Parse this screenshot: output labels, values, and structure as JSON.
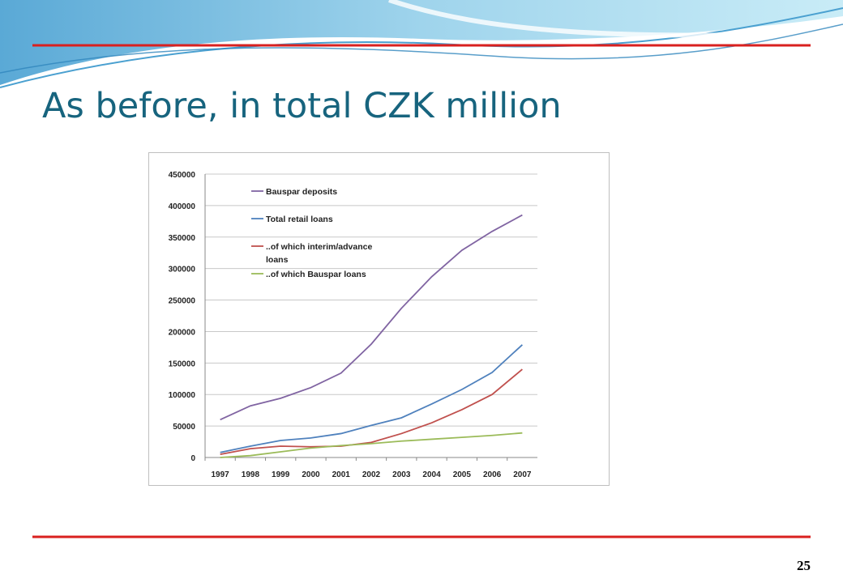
{
  "slide": {
    "title": "As before, in total CZK million",
    "page_number": "25"
  },
  "chart_data": {
    "type": "line",
    "categories": [
      "1997",
      "1998",
      "1999",
      "2000",
      "2001",
      "2002",
      "2003",
      "2004",
      "2005",
      "2006",
      "2007"
    ],
    "series": [
      {
        "name": "Bauspar deposits",
        "color": "#8064a2",
        "values": [
          60000,
          82000,
          94000,
          111000,
          134000,
          180000,
          237000,
          287000,
          329000,
          359000,
          385000
        ]
      },
      {
        "name": "Total retail loans",
        "color": "#4f81bd",
        "values": [
          8000,
          18000,
          27000,
          31000,
          38000,
          51000,
          63000,
          85000,
          108000,
          135000,
          179000
        ]
      },
      {
        "name": "..of which interim/advance loans",
        "color": "#c0504d",
        "values": [
          5000,
          14000,
          18000,
          17000,
          18000,
          24000,
          38000,
          55000,
          76000,
          100000,
          140000
        ]
      },
      {
        "name": "..of which Bauspar loans",
        "color": "#9bbb59",
        "values": [
          0,
          3000,
          9000,
          15000,
          19000,
          22000,
          26000,
          29000,
          32000,
          35000,
          39000
        ]
      }
    ],
    "ylim": [
      0,
      450000
    ],
    "yticks": [
      0,
      50000,
      100000,
      150000,
      200000,
      250000,
      300000,
      350000,
      400000,
      450000
    ],
    "grid": true,
    "legend": "upper left"
  }
}
